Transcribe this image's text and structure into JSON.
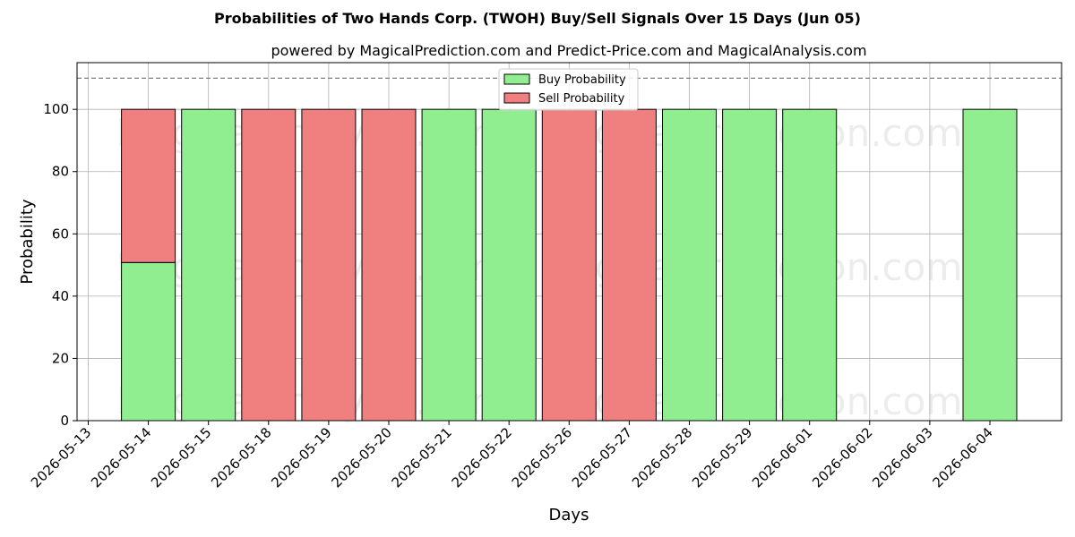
{
  "chart_data": {
    "type": "bar",
    "title": "Probabilities of Two Hands Corp. (TWOH) Buy/Sell Signals Over 15 Days (Jun 05)",
    "subtitle": "powered by MagicalPrediction.com and Predict-Price.com and MagicalAnalysis.com",
    "xlabel": "Days",
    "ylabel": "Probability",
    "ylim": [
      0,
      115
    ],
    "yticks": [
      0,
      20,
      40,
      60,
      80,
      100
    ],
    "reference_line": 110,
    "grid": true,
    "legend_position": "top-center",
    "categories": [
      "2026-05-13",
      "2026-05-14",
      "2026-05-15",
      "2026-05-18",
      "2026-05-19",
      "2026-05-20",
      "2026-05-21",
      "2026-05-22",
      "2026-05-26",
      "2026-05-27",
      "2026-05-28",
      "2026-05-29",
      "2026-06-01",
      "2026-06-02",
      "2026-06-03",
      "2026-06-04"
    ],
    "series": [
      {
        "name": "Buy Probability",
        "color": "#90ee90",
        "values": [
          null,
          50.8,
          100,
          0,
          0,
          0,
          100,
          100,
          0,
          0,
          100,
          100,
          100,
          null,
          null,
          100
        ]
      },
      {
        "name": "Sell Probability",
        "color": "#f08080",
        "values": [
          null,
          49.2,
          0,
          100,
          100,
          100,
          0,
          0,
          100,
          100,
          0,
          0,
          0,
          null,
          null,
          0
        ]
      }
    ]
  },
  "watermarks": [
    "MagicalAnalysis.com",
    "MagicalPrediction.com"
  ]
}
